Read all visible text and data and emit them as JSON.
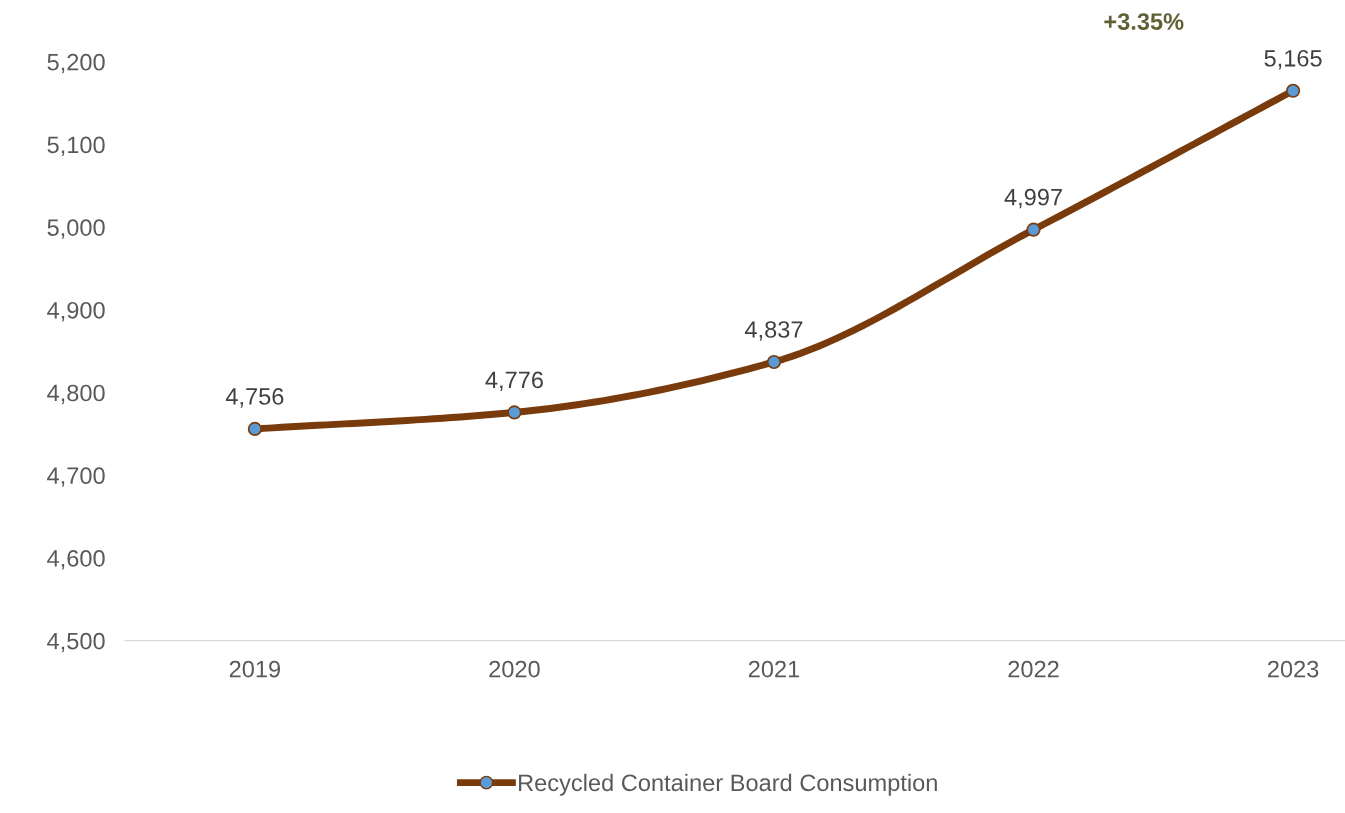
{
  "chart_data": {
    "type": "line",
    "categories": [
      "2019",
      "2020",
      "2021",
      "2022",
      "2023"
    ],
    "series": [
      {
        "name": "Recycled Container Board Consumption",
        "color": "#7a3b0c",
        "values": [
          4756,
          4776,
          4837,
          4997,
          5165
        ],
        "value_labels": [
          "4,756",
          "4,776",
          "4,837",
          "4,997",
          "5,165"
        ]
      }
    ],
    "ylim": [
      4500,
      5200
    ],
    "yticks": [
      {
        "value": 4500,
        "label": "4,500"
      },
      {
        "value": 4600,
        "label": "4,600"
      },
      {
        "value": 4700,
        "label": "4,700"
      },
      {
        "value": 4800,
        "label": "4,800"
      },
      {
        "value": 4900,
        "label": "4,900"
      },
      {
        "value": 5000,
        "label": "5,000"
      },
      {
        "value": 5100,
        "label": "5,100"
      },
      {
        "value": 5200,
        "label": "5,200"
      }
    ],
    "annotations": [
      "+3.35%"
    ],
    "grid": false,
    "legend": "bottom",
    "marker": "circle",
    "line_style": "solid"
  }
}
